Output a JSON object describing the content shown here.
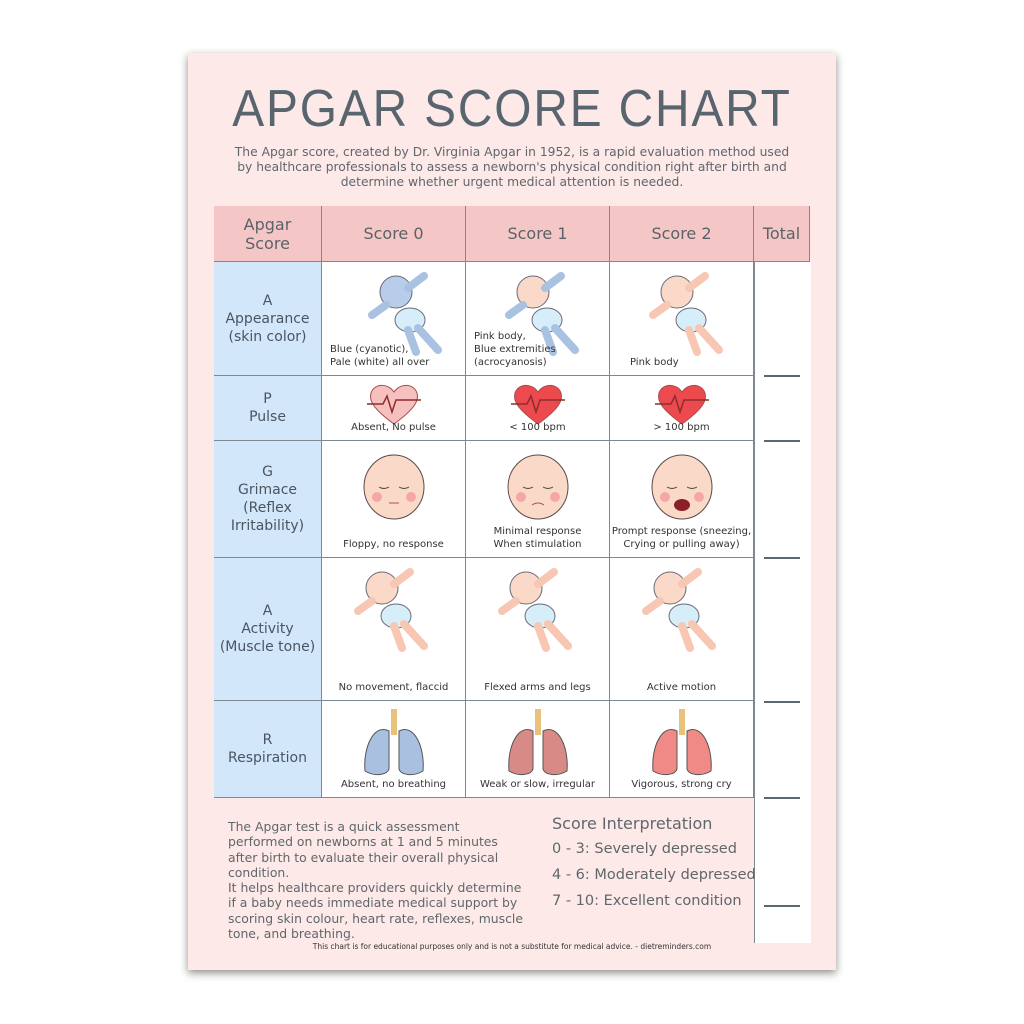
{
  "title": "APGAR SCORE CHART",
  "intro": "The Apgar score, created by Dr. Virginia Apgar in 1952, is a rapid evaluation method used by healthcare professionals to assess a newborn's physical condition right after birth and determine whether urgent medical attention is needed.",
  "table": {
    "headers": [
      "Apgar Score",
      "Score 0",
      "Score 1",
      "Score 2",
      "Total"
    ],
    "rows": [
      {
        "label": "A\nAppearance\n(skin color)",
        "cells": [
          "Blue (cyanotic),\nPale (white) all over",
          "Pink body,\nBlue extremities\n(acrocyanosis)",
          "Pink body"
        ],
        "icons": [
          "blue-baby-icon",
          "pink-baby-blue-limbs-icon",
          "pink-baby-icon"
        ]
      },
      {
        "label": "P\nPulse",
        "cells": [
          "Absent, No pulse",
          "< 100 bpm",
          "> 100 bpm"
        ],
        "icons": [
          "pale-heart-icon",
          "heart-icon",
          "heart-icon"
        ]
      },
      {
        "label": "G\nGrimace\n(Reflex\nIrritability)",
        "cells": [
          "Floppy, no response",
          "Minimal response\nWhen stimulation",
          "Prompt response (sneezing,\nCrying or pulling away)"
        ],
        "icons": [
          "sleeping-face-icon",
          "frowning-face-icon",
          "crying-face-icon"
        ]
      },
      {
        "label": "A\nActivity\n(Muscle tone)",
        "cells": [
          "No movement, flaccid",
          "Flexed arms and legs",
          "Active motion"
        ],
        "icons": [
          "limp-baby-icon",
          "flexed-baby-icon",
          "active-baby-icon"
        ]
      },
      {
        "label": "R\nRespiration",
        "cells": [
          "Absent, no breathing",
          "Weak or slow, irregular",
          "Vigorous, strong cry"
        ],
        "icons": [
          "blue-lungs-icon",
          "red-lungs-icon",
          "pink-lungs-icon"
        ]
      }
    ]
  },
  "note": "The Apgar test is a quick assessment performed on newborns at 1 and 5 minutes after birth to evaluate their overall physical condition.\nIt helps healthcare providers quickly determine if a baby needs immediate medical support by scoring skin colour, heart rate, reflexes, muscle tone, and breathing.",
  "interpretation": {
    "title": "Score Interpretation",
    "items": [
      "0 - 3: Severely depressed",
      "4 - 6: Moderately depressed",
      "7 - 10: Excellent condition"
    ]
  },
  "footer": "This chart is for educational purposes only and is not a substitute for medical advice. -  dietreminders.com",
  "colors": {
    "header": "#f5c6c6",
    "row_header": "#d3e7fb",
    "background": "#fde9e8",
    "title": "#58656e"
  }
}
